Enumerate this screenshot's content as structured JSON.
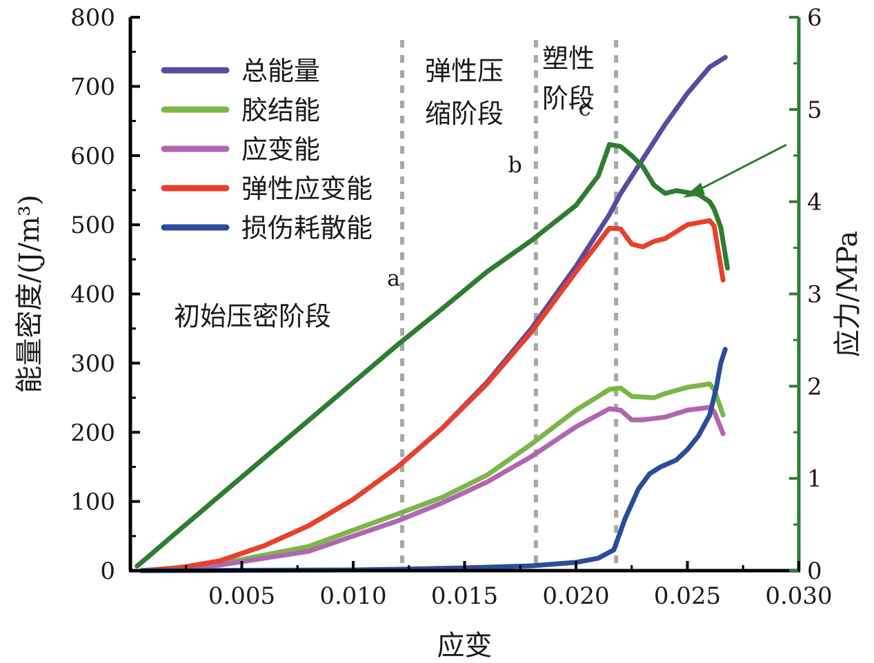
{
  "chart_data": {
    "type": "line",
    "xlabel": "应变",
    "ylabel_left": "能量密度/(J/m³)",
    "ylabel_right": "应力/MPa",
    "xlim": [
      0,
      0.03
    ],
    "ylim_left": [
      0,
      800
    ],
    "ylim_right": [
      0,
      6
    ],
    "x_ticks": [
      "0.005",
      "0.010",
      "0.015",
      "0.020",
      "0.025",
      "0.030"
    ],
    "x_tick_values": [
      0.005,
      0.01,
      0.015,
      0.02,
      0.025,
      0.03
    ],
    "y_left_ticks": [
      "0",
      "100",
      "200",
      "300",
      "400",
      "500",
      "600",
      "700",
      "800"
    ],
    "y_left_tick_values": [
      0,
      100,
      200,
      300,
      400,
      500,
      600,
      700,
      800
    ],
    "y_right_ticks": [
      "0",
      "1",
      "2",
      "3",
      "4",
      "5",
      "6"
    ],
    "y_right_tick_values": [
      0,
      1,
      2,
      3,
      4,
      5,
      6
    ],
    "grid": false,
    "legend_position": "top-left",
    "stage_boundaries": [
      0.0122,
      0.0182,
      0.0218
    ],
    "stage_labels": [
      "初始压密阶段",
      "弹性压缩阶段",
      "塑性阶段"
    ],
    "point_labels": [
      {
        "text": "a",
        "x": 0.0122,
        "y": 400
      },
      {
        "text": "b",
        "x": 0.018,
        "y": 570
      },
      {
        "text": "c",
        "x": 0.0216,
        "y": 650
      }
    ],
    "series": [
      {
        "name": "总能量",
        "axis": "left",
        "color": "#5b4a9e",
        "points": [
          [
            0.0005,
            0
          ],
          [
            0.002,
            3
          ],
          [
            0.004,
            14
          ],
          [
            0.006,
            36
          ],
          [
            0.008,
            65
          ],
          [
            0.01,
            103
          ],
          [
            0.012,
            150
          ],
          [
            0.014,
            206
          ],
          [
            0.016,
            272
          ],
          [
            0.018,
            350
          ],
          [
            0.02,
            440
          ],
          [
            0.0215,
            515
          ],
          [
            0.022,
            545
          ],
          [
            0.023,
            595
          ],
          [
            0.024,
            645
          ],
          [
            0.025,
            690
          ],
          [
            0.026,
            728
          ],
          [
            0.0267,
            742
          ]
        ]
      },
      {
        "name": "胶结能",
        "axis": "left",
        "color": "#7ab648",
        "points": [
          [
            0.0005,
            0
          ],
          [
            0.004,
            10
          ],
          [
            0.008,
            35
          ],
          [
            0.012,
            82
          ],
          [
            0.014,
            106
          ],
          [
            0.016,
            138
          ],
          [
            0.018,
            183
          ],
          [
            0.02,
            232
          ],
          [
            0.0215,
            262
          ],
          [
            0.022,
            264
          ],
          [
            0.0225,
            252
          ],
          [
            0.023,
            251
          ],
          [
            0.0235,
            250
          ],
          [
            0.024,
            256
          ],
          [
            0.025,
            265
          ],
          [
            0.026,
            270
          ],
          [
            0.0262,
            262
          ],
          [
            0.0266,
            225
          ]
        ]
      },
      {
        "name": "应变能",
        "axis": "left",
        "color": "#b067b0",
        "points": [
          [
            0.0005,
            0
          ],
          [
            0.004,
            8
          ],
          [
            0.008,
            28
          ],
          [
            0.012,
            72
          ],
          [
            0.014,
            98
          ],
          [
            0.016,
            128
          ],
          [
            0.018,
            165
          ],
          [
            0.02,
            208
          ],
          [
            0.0215,
            234
          ],
          [
            0.022,
            232
          ],
          [
            0.0225,
            218
          ],
          [
            0.023,
            218
          ],
          [
            0.0235,
            220
          ],
          [
            0.024,
            222
          ],
          [
            0.025,
            232
          ],
          [
            0.026,
            236
          ],
          [
            0.0262,
            230
          ],
          [
            0.0266,
            198
          ]
        ]
      },
      {
        "name": "弹性应变能",
        "axis": "left",
        "color": "#e8402d",
        "points": [
          [
            0.0005,
            0
          ],
          [
            0.002,
            3
          ],
          [
            0.004,
            14
          ],
          [
            0.006,
            36
          ],
          [
            0.008,
            65
          ],
          [
            0.01,
            103
          ],
          [
            0.012,
            150
          ],
          [
            0.014,
            206
          ],
          [
            0.016,
            270
          ],
          [
            0.018,
            345
          ],
          [
            0.02,
            432
          ],
          [
            0.0215,
            495
          ],
          [
            0.022,
            494
          ],
          [
            0.0225,
            472
          ],
          [
            0.023,
            468
          ],
          [
            0.0235,
            476
          ],
          [
            0.024,
            480
          ],
          [
            0.025,
            500
          ],
          [
            0.026,
            506
          ],
          [
            0.0262,
            498
          ],
          [
            0.0266,
            420
          ]
        ]
      },
      {
        "name": "损伤耗散能",
        "axis": "left",
        "color": "#2b4c9a",
        "points": [
          [
            0.0005,
            0
          ],
          [
            0.01,
            1
          ],
          [
            0.012,
            2
          ],
          [
            0.015,
            4
          ],
          [
            0.018,
            7
          ],
          [
            0.02,
            12
          ],
          [
            0.021,
            18
          ],
          [
            0.0217,
            30
          ],
          [
            0.0222,
            75
          ],
          [
            0.0228,
            118
          ],
          [
            0.0233,
            140
          ],
          [
            0.0238,
            150
          ],
          [
            0.0245,
            160
          ],
          [
            0.025,
            175
          ],
          [
            0.0255,
            195
          ],
          [
            0.026,
            225
          ],
          [
            0.0263,
            265
          ],
          [
            0.0265,
            300
          ],
          [
            0.0267,
            320
          ]
        ]
      },
      {
        "name": "",
        "axis": "right",
        "color": "#2f7d32",
        "points": [
          [
            0.0003,
            0.05
          ],
          [
            0.0008,
            0.15
          ],
          [
            0.002,
            0.4
          ],
          [
            0.004,
            0.81
          ],
          [
            0.006,
            1.22
          ],
          [
            0.008,
            1.63
          ],
          [
            0.01,
            2.04
          ],
          [
            0.012,
            2.45
          ],
          [
            0.014,
            2.84
          ],
          [
            0.016,
            3.24
          ],
          [
            0.018,
            3.58
          ],
          [
            0.02,
            3.96
          ],
          [
            0.021,
            4.28
          ],
          [
            0.0215,
            4.62
          ],
          [
            0.022,
            4.6
          ],
          [
            0.0225,
            4.5
          ],
          [
            0.023,
            4.38
          ],
          [
            0.0235,
            4.18
          ],
          [
            0.024,
            4.09
          ],
          [
            0.0245,
            4.12
          ],
          [
            0.025,
            4.1
          ],
          [
            0.0255,
            4.08
          ],
          [
            0.026,
            4.0
          ],
          [
            0.0262,
            3.92
          ],
          [
            0.0265,
            3.72
          ],
          [
            0.0268,
            3.28
          ]
        ]
      }
    ]
  }
}
